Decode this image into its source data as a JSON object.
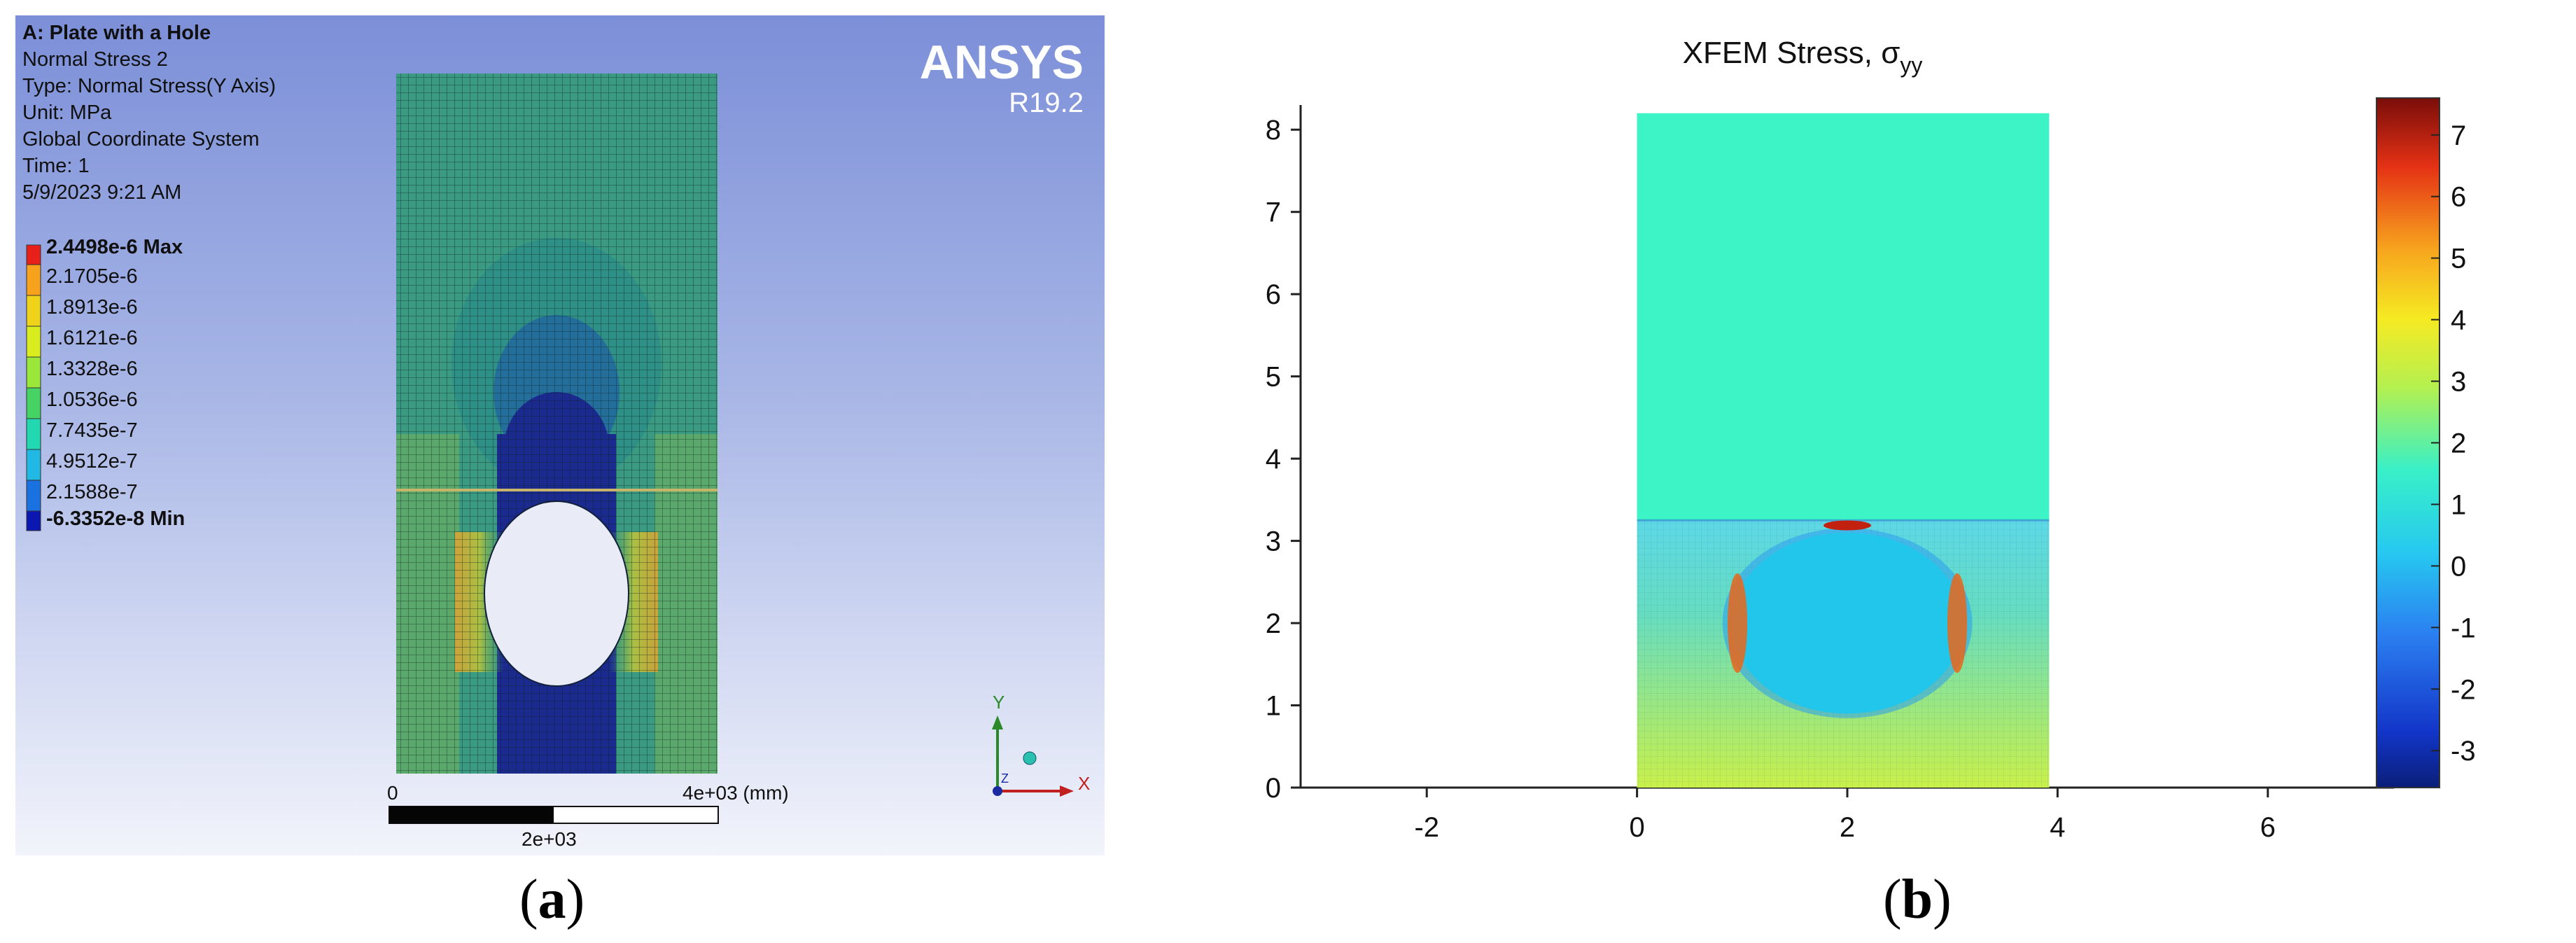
{
  "panel_a": {
    "info": {
      "title": "A: Plate with a Hole",
      "lines": [
        "Normal Stress 2",
        "Type: Normal Stress(Y Axis)",
        "Unit: MPa",
        "Global Coordinate System",
        "Time: 1",
        "5/9/2023 9:21 AM"
      ]
    },
    "brand": {
      "name": "ANSYS",
      "version": "R19.2"
    },
    "legend": [
      {
        "label": "2.4498e-6 Max",
        "color": "#e8201a",
        "bold": true
      },
      {
        "label": "2.1705e-6",
        "color": "#f7a21c",
        "bold": false
      },
      {
        "label": "1.8913e-6",
        "color": "#eed31a",
        "bold": false
      },
      {
        "label": "1.6121e-6",
        "color": "#d8ec1e",
        "bold": false
      },
      {
        "label": "1.3328e-6",
        "color": "#9be63a",
        "bold": false
      },
      {
        "label": "1.0536e-6",
        "color": "#45d464",
        "bold": false
      },
      {
        "label": "7.7435e-7",
        "color": "#22d8b0",
        "bold": false
      },
      {
        "label": "4.9512e-7",
        "color": "#21b9e3",
        "bold": false
      },
      {
        "label": "2.1588e-7",
        "color": "#1a72e0",
        "bold": false
      },
      {
        "label": "-6.3352e-8 Min",
        "color": "#0a17b0",
        "bold": true
      }
    ],
    "scale": {
      "left": "0",
      "right": "4e+03 (mm)",
      "mid": "2e+03"
    },
    "triad": {
      "x": "X",
      "y": "Y",
      "z": "Z"
    }
  },
  "caption_a": {
    "open": "(",
    "letter": "a",
    "close": ")"
  },
  "caption_b": {
    "open": "(",
    "letter": "b",
    "close": ")"
  },
  "chart_data": {
    "type": "heatmap",
    "title": "XFEM Stress, σ",
    "title_sub": "yy",
    "xlabel": "",
    "ylabel": "",
    "xlim": [
      -3.2,
      7.2
    ],
    "ylim": [
      0,
      8.3
    ],
    "x_ticks": [
      "-2",
      "0",
      "2",
      "4",
      "6"
    ],
    "y_ticks": [
      "0",
      "1",
      "2",
      "3",
      "4",
      "5",
      "6",
      "7",
      "8"
    ],
    "colorbar": {
      "range": [
        -3.6,
        7.6
      ],
      "ticks": [
        "-3",
        "-2",
        "-1",
        "0",
        "1",
        "2",
        "3",
        "4",
        "5",
        "6",
        "7"
      ]
    },
    "plate": {
      "x": [
        0,
        3.92
      ],
      "y": [
        0,
        8.2
      ]
    },
    "hole": {
      "center": [
        2,
        2
      ],
      "radius": 1.1
    }
  }
}
